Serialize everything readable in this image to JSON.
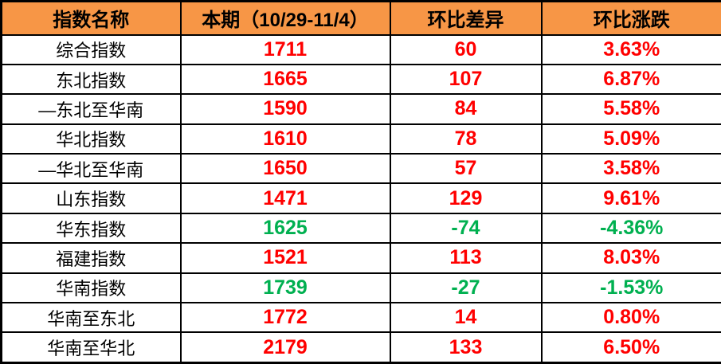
{
  "colors": {
    "header_bg": "#F79646",
    "up": "#FF0000",
    "down": "#00B050",
    "border": "#000000"
  },
  "table": {
    "columns": [
      {
        "label": "指数名称"
      },
      {
        "label": "本期（10/29-11/4）"
      },
      {
        "label": "环比差异"
      },
      {
        "label": "环比涨跌"
      }
    ],
    "rows": [
      {
        "name": "综合指数",
        "current": "1711",
        "diff": "60",
        "pct": "3.63%",
        "trend": "up"
      },
      {
        "name": "东北指数",
        "current": "1665",
        "diff": "107",
        "pct": "6.87%",
        "trend": "up"
      },
      {
        "name": "—东北至华南",
        "current": "1590",
        "diff": "84",
        "pct": "5.58%",
        "trend": "up"
      },
      {
        "name": "华北指数",
        "current": "1610",
        "diff": "78",
        "pct": "5.09%",
        "trend": "up"
      },
      {
        "name": "—华北至华南",
        "current": "1650",
        "diff": "57",
        "pct": "3.58%",
        "trend": "up"
      },
      {
        "name": "山东指数",
        "current": "1471",
        "diff": "129",
        "pct": "9.61%",
        "trend": "up"
      },
      {
        "name": "华东指数",
        "current": "1625",
        "diff": "-74",
        "pct": "-4.36%",
        "trend": "down"
      },
      {
        "name": "福建指数",
        "current": "1521",
        "diff": "113",
        "pct": "8.03%",
        "trend": "up"
      },
      {
        "name": "华南指数",
        "current": "1739",
        "diff": "-27",
        "pct": "-1.53%",
        "trend": "down"
      },
      {
        "name": "华南至东北",
        "current": "1772",
        "diff": "14",
        "pct": "0.80%",
        "trend": "up"
      },
      {
        "name": "华南至华北",
        "current": "2179",
        "diff": "133",
        "pct": "6.50%",
        "trend": "up"
      }
    ]
  }
}
